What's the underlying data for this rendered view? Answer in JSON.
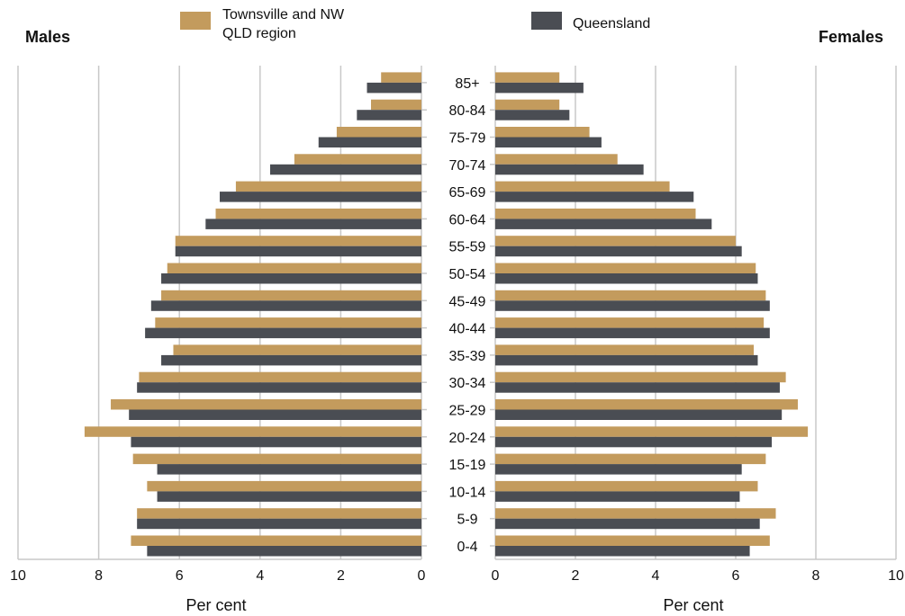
{
  "chart_data": {
    "type": "bar",
    "orientation": "horizontal",
    "layout": "population-pyramid",
    "left_panel_label": "Males",
    "right_panel_label": "Females",
    "xlabel": "Per cent",
    "xlim": [
      0,
      10
    ],
    "x_ticks": [
      0,
      2,
      4,
      6,
      8,
      10
    ],
    "grid": "vertical",
    "legend_position": "top-center",
    "categories": [
      "0-4",
      "5-9",
      "10-14",
      "15-19",
      "20-24",
      "25-29",
      "30-34",
      "35-39",
      "40-44",
      "45-49",
      "50-54",
      "55-59",
      "60-64",
      "65-69",
      "70-74",
      "75-79",
      "80-84",
      "85+"
    ],
    "series": [
      {
        "name": "Townsville and NW QLD region",
        "color": "#c39b5d",
        "males": [
          7.2,
          7.05,
          6.8,
          7.15,
          8.35,
          7.7,
          7.0,
          6.15,
          6.6,
          6.45,
          6.3,
          6.1,
          5.1,
          4.6,
          3.15,
          2.1,
          1.25,
          1.0
        ],
        "females": [
          6.85,
          7.0,
          6.55,
          6.75,
          7.8,
          7.55,
          7.25,
          6.45,
          6.7,
          6.75,
          6.5,
          6.0,
          5.0,
          4.35,
          3.05,
          2.35,
          1.6,
          1.6
        ]
      },
      {
        "name": "Queensland",
        "color": "#4a4d53",
        "males": [
          6.8,
          7.05,
          6.55,
          6.55,
          7.2,
          7.25,
          7.05,
          6.45,
          6.85,
          6.7,
          6.45,
          6.1,
          5.35,
          5.0,
          3.75,
          2.55,
          1.6,
          1.35
        ],
        "females": [
          6.35,
          6.6,
          6.1,
          6.15,
          6.9,
          7.15,
          7.1,
          6.55,
          6.85,
          6.85,
          6.55,
          6.15,
          5.4,
          4.95,
          3.7,
          2.65,
          1.85,
          2.2
        ]
      }
    ]
  }
}
